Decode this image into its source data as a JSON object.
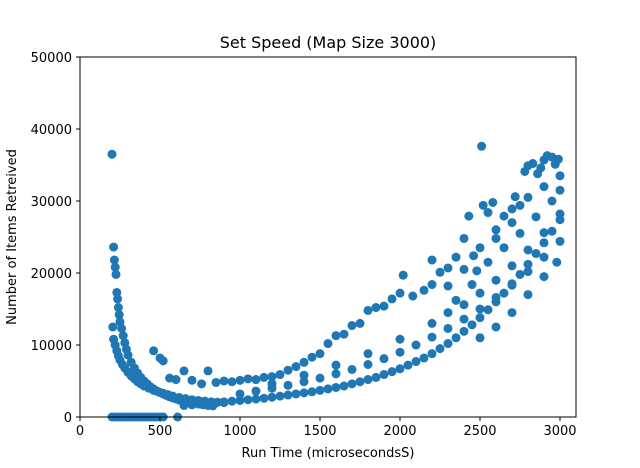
{
  "chart_data": {
    "type": "scatter",
    "title": "Set Speed (Map Size 3000)",
    "xlabel": "Run Time (microsecondsS)",
    "ylabel": "Number of Items Retreived",
    "xlim": [
      0,
      3100
    ],
    "ylim": [
      0,
      50000
    ],
    "xticks": [
      0,
      500,
      1000,
      1500,
      2000,
      2500,
      3000
    ],
    "yticks": [
      0,
      10000,
      20000,
      30000,
      40000,
      50000
    ],
    "xtick_labels": [
      "0",
      "500",
      "1000",
      "1500",
      "2000",
      "2500",
      "3000"
    ],
    "ytick_labels": [
      "0",
      "10000",
      "20000",
      "30000",
      "40000",
      "50000"
    ],
    "grid": false,
    "legend": "none",
    "marker_color": "#1f77b4",
    "series": [
      {
        "points": [
          [
            200,
            36500
          ],
          [
            2510,
            37600
          ],
          [
            205,
            12500
          ],
          [
            210,
            23600
          ],
          [
            215,
            21800
          ],
          [
            220,
            20800
          ],
          [
            225,
            19800
          ],
          [
            230,
            17300
          ],
          [
            235,
            16400
          ],
          [
            240,
            15200
          ],
          [
            245,
            14200
          ],
          [
            250,
            13200
          ],
          [
            260,
            12300
          ],
          [
            270,
            11300
          ],
          [
            280,
            10300
          ],
          [
            290,
            9400
          ],
          [
            300,
            8600
          ],
          [
            320,
            7600
          ],
          [
            340,
            6800
          ],
          [
            360,
            6100
          ],
          [
            380,
            5500
          ],
          [
            400,
            5000
          ],
          [
            420,
            4600
          ],
          [
            440,
            4200
          ],
          [
            460,
            3900
          ],
          [
            480,
            3600
          ],
          [
            500,
            3400
          ],
          [
            520,
            3200
          ],
          [
            540,
            3000
          ],
          [
            560,
            2800
          ],
          [
            580,
            2650
          ],
          [
            600,
            2500
          ],
          [
            620,
            2350
          ],
          [
            650,
            2200
          ],
          [
            680,
            2050
          ],
          [
            710,
            1900
          ],
          [
            740,
            1800
          ],
          [
            770,
            1700
          ],
          [
            800,
            1600
          ],
          [
            830,
            1550
          ],
          [
            210,
            10800
          ],
          [
            220,
            10000
          ],
          [
            230,
            9200
          ],
          [
            240,
            8500
          ],
          [
            250,
            7900
          ],
          [
            265,
            7300
          ],
          [
            280,
            6800
          ],
          [
            300,
            6200
          ],
          [
            320,
            5700
          ],
          [
            340,
            5300
          ],
          [
            360,
            4900
          ],
          [
            380,
            4600
          ],
          [
            400,
            4300
          ],
          [
            430,
            4000
          ],
          [
            460,
            3700
          ],
          [
            490,
            3500
          ],
          [
            520,
            3300
          ],
          [
            550,
            3100
          ],
          [
            580,
            2900
          ],
          [
            620,
            2700
          ],
          [
            660,
            2550
          ],
          [
            700,
            2400
          ],
          [
            740,
            2300
          ],
          [
            780,
            2200
          ],
          [
            820,
            2100
          ],
          [
            860,
            2050
          ],
          [
            900,
            2000
          ],
          [
            200,
            0
          ],
          [
            220,
            0
          ],
          [
            240,
            0
          ],
          [
            260,
            0
          ],
          [
            280,
            0
          ],
          [
            300,
            0
          ],
          [
            320,
            0
          ],
          [
            340,
            0
          ],
          [
            360,
            0
          ],
          [
            380,
            0
          ],
          [
            400,
            0
          ],
          [
            420,
            0
          ],
          [
            440,
            0
          ],
          [
            460,
            0
          ],
          [
            480,
            0
          ],
          [
            500,
            0
          ],
          [
            520,
            0
          ],
          [
            610,
            0
          ],
          [
            460,
            9200
          ],
          [
            500,
            8200
          ],
          [
            520,
            7800
          ],
          [
            560,
            5400
          ],
          [
            600,
            5200
          ],
          [
            650,
            6400
          ],
          [
            700,
            5100
          ],
          [
            760,
            4600
          ],
          [
            800,
            6400
          ],
          [
            850,
            4800
          ],
          [
            900,
            5000
          ],
          [
            950,
            4900
          ],
          [
            1000,
            5100
          ],
          [
            1050,
            5300
          ],
          [
            1100,
            5200
          ],
          [
            1150,
            5500
          ],
          [
            1200,
            5600
          ],
          [
            1250,
            5900
          ],
          [
            1300,
            6500
          ],
          [
            1350,
            7000
          ],
          [
            1400,
            7600
          ],
          [
            1450,
            8300
          ],
          [
            1500,
            8800
          ],
          [
            1550,
            10200
          ],
          [
            1600,
            11300
          ],
          [
            1650,
            11500
          ],
          [
            1700,
            12700
          ],
          [
            1750,
            13000
          ],
          [
            1800,
            14800
          ],
          [
            1850,
            15200
          ],
          [
            1900,
            15400
          ],
          [
            1950,
            16400
          ],
          [
            2000,
            17200
          ],
          [
            2020,
            19700
          ],
          [
            2080,
            16800
          ],
          [
            2150,
            17600
          ],
          [
            2200,
            18400
          ],
          [
            2250,
            20100
          ],
          [
            2300,
            20700
          ],
          [
            2350,
            22200
          ],
          [
            2400,
            24800
          ],
          [
            2430,
            27900
          ],
          [
            2460,
            22400
          ],
          [
            2480,
            20300
          ],
          [
            2520,
            29400
          ],
          [
            2550,
            28400
          ],
          [
            2580,
            29800
          ],
          [
            2600,
            24800
          ],
          [
            2650,
            27900
          ],
          [
            2700,
            28900
          ],
          [
            2720,
            30600
          ],
          [
            2750,
            29400
          ],
          [
            2780,
            34100
          ],
          [
            2800,
            34900
          ],
          [
            2830,
            35200
          ],
          [
            2860,
            33800
          ],
          [
            2880,
            34600
          ],
          [
            2900,
            35700
          ],
          [
            2920,
            36300
          ],
          [
            2950,
            36100
          ],
          [
            2970,
            35100
          ],
          [
            2990,
            35800
          ],
          [
            650,
            1600
          ],
          [
            700,
            1700
          ],
          [
            750,
            1800
          ],
          [
            800,
            1900
          ],
          [
            850,
            2000
          ],
          [
            900,
            2100
          ],
          [
            950,
            2200
          ],
          [
            1000,
            2300
          ],
          [
            1050,
            2400
          ],
          [
            1100,
            2500
          ],
          [
            1150,
            2600
          ],
          [
            1200,
            2750
          ],
          [
            1250,
            2900
          ],
          [
            1300,
            3050
          ],
          [
            1350,
            3200
          ],
          [
            1400,
            3350
          ],
          [
            1450,
            3500
          ],
          [
            1500,
            3700
          ],
          [
            1550,
            3900
          ],
          [
            1600,
            4100
          ],
          [
            1650,
            4300
          ],
          [
            1700,
            4600
          ],
          [
            1750,
            4900
          ],
          [
            1800,
            5200
          ],
          [
            1850,
            5500
          ],
          [
            1900,
            5900
          ],
          [
            1950,
            6300
          ],
          [
            2000,
            6700
          ],
          [
            2050,
            7200
          ],
          [
            2100,
            7700
          ],
          [
            2150,
            8200
          ],
          [
            2200,
            8800
          ],
          [
            2250,
            9500
          ],
          [
            2300,
            10200
          ],
          [
            2350,
            11000
          ],
          [
            2400,
            11900
          ],
          [
            2450,
            12800
          ],
          [
            2500,
            13800
          ],
          [
            2550,
            14900
          ],
          [
            2600,
            16000
          ],
          [
            2650,
            17200
          ],
          [
            2700,
            18500
          ],
          [
            2750,
            19800
          ],
          [
            2800,
            21200
          ],
          [
            2850,
            22700
          ],
          [
            2900,
            24200
          ],
          [
            2950,
            25800
          ],
          [
            3000,
            27400
          ],
          [
            1000,
            3200
          ],
          [
            1100,
            3600
          ],
          [
            1200,
            4000
          ],
          [
            1300,
            4400
          ],
          [
            1400,
            4900
          ],
          [
            1500,
            5400
          ],
          [
            1600,
            6000
          ],
          [
            1700,
            6600
          ],
          [
            1800,
            7300
          ],
          [
            1900,
            8100
          ],
          [
            2000,
            9000
          ],
          [
            2100,
            10000
          ],
          [
            2200,
            11100
          ],
          [
            2300,
            12300
          ],
          [
            2400,
            13600
          ],
          [
            2500,
            15000
          ],
          [
            2600,
            16600
          ],
          [
            2700,
            18300
          ],
          [
            2800,
            20200
          ],
          [
            2900,
            22200
          ],
          [
            3000,
            24400
          ],
          [
            1200,
            4600
          ],
          [
            1400,
            5800
          ],
          [
            1600,
            7200
          ],
          [
            1800,
            8800
          ],
          [
            2000,
            10800
          ],
          [
            2200,
            13000
          ],
          [
            2400,
            15600
          ],
          [
            2500,
            17200
          ],
          [
            2600,
            19000
          ],
          [
            2700,
            21000
          ],
          [
            2800,
            23200
          ],
          [
            2900,
            25600
          ],
          [
            3000,
            28200
          ],
          [
            2300,
            14500
          ],
          [
            2350,
            16200
          ],
          [
            2450,
            18400
          ],
          [
            2550,
            21500
          ],
          [
            2650,
            23500
          ],
          [
            2750,
            25500
          ],
          [
            2850,
            27800
          ],
          [
            2950,
            30000
          ],
          [
            3000,
            31500
          ],
          [
            2500,
            11000
          ],
          [
            2600,
            12500
          ],
          [
            2700,
            14500
          ],
          [
            2800,
            17000
          ],
          [
            2900,
            19500
          ],
          [
            2980,
            21500
          ],
          [
            2200,
            21800
          ],
          [
            2300,
            18200
          ],
          [
            2400,
            20500
          ],
          [
            2500,
            23500
          ],
          [
            2600,
            26000
          ],
          [
            2700,
            27000
          ],
          [
            2800,
            30500
          ],
          [
            2900,
            32000
          ],
          [
            3000,
            33500
          ]
        ]
      }
    ]
  }
}
